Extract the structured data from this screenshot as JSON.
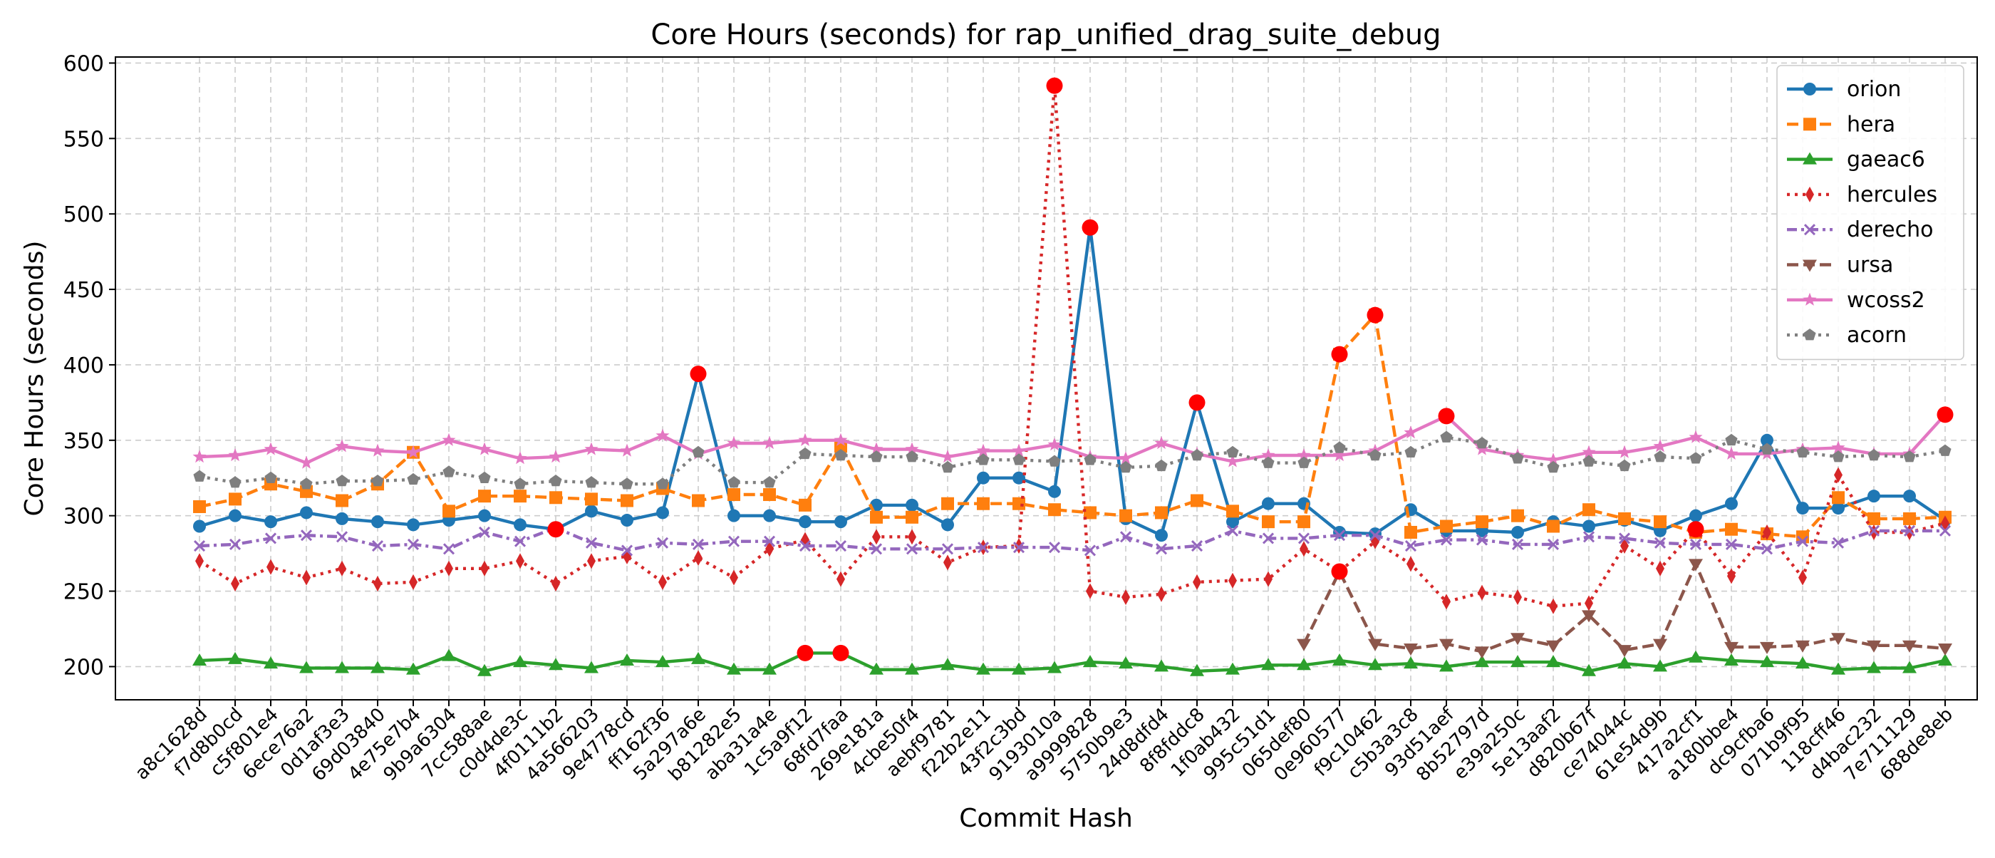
{
  "chart_data": {
    "type": "line",
    "title": "Core Hours (seconds) for rap_unified_drag_suite_debug",
    "xlabel": "Commit Hash",
    "ylabel": "Core Hours (seconds)",
    "ylim": [
      178,
      604
    ],
    "yticks": [
      200,
      250,
      300,
      350,
      400,
      450,
      500,
      550,
      600
    ],
    "grid": true,
    "legend_position": "top-right",
    "outlier_marker_color": "#ff0000",
    "categories": [
      "a8c1628d",
      "f7d8b0cd",
      "c5f801e4",
      "6ece76a2",
      "0d1af3e3",
      "69d03840",
      "4e75e7b4",
      "9b9a6304",
      "7cc588ae",
      "c0d4de3c",
      "4f0111b2",
      "4a566203",
      "9e4778cd",
      "ff162f36",
      "5a297a6e",
      "b81282e5",
      "aba31a4e",
      "1c5a9f12",
      "68fd7faa",
      "269e181a",
      "4cbe50f4",
      "aebf9781",
      "f22b2e11",
      "43f2c3bd",
      "9193010a",
      "a9999828",
      "5750b9e3",
      "24d8dfd4",
      "8f8fddc8",
      "1f0ab432",
      "995c51d1",
      "065def80",
      "0e960577",
      "f9c10462",
      "c5b3a3c8",
      "93d51aef",
      "8b52797d",
      "e39a250c",
      "5e13aaf2",
      "d820b67f",
      "ce74044c",
      "61e54d9b",
      "417a2cf1",
      "a180bbe4",
      "dc9cfba6",
      "071b9f95",
      "118cff46",
      "d4bac232",
      "7e711129",
      "688de8eb"
    ],
    "series": [
      {
        "name": "orion",
        "color": "#1f77b4",
        "dash": "solid",
        "marker": "circle",
        "values": [
          293,
          300,
          296,
          302,
          298,
          296,
          294,
          297,
          300,
          294,
          291,
          303,
          297,
          302,
          394,
          300,
          300,
          296,
          296,
          307,
          307,
          294,
          325,
          325,
          316,
          491,
          298,
          287,
          375,
          296,
          308,
          308,
          289,
          288,
          304,
          290,
          290,
          289,
          296,
          293,
          297,
          290,
          300,
          308,
          350,
          305,
          305,
          313,
          313,
          297
        ],
        "highlights": [
          10,
          14,
          25,
          28
        ]
      },
      {
        "name": "hera",
        "color": "#ff7f0e",
        "dash": "dashed",
        "marker": "square",
        "values": [
          306,
          311,
          321,
          316,
          310,
          321,
          342,
          303,
          313,
          313,
          312,
          311,
          310,
          318,
          310,
          314,
          314,
          307,
          346,
          299,
          299,
          308,
          308,
          308,
          304,
          302,
          300,
          302,
          310,
          303,
          296,
          296,
          407,
          433,
          289,
          293,
          296,
          300,
          293,
          304,
          298,
          296,
          289,
          291,
          288,
          286,
          312,
          298,
          298,
          299
        ],
        "highlights": [
          32,
          33
        ]
      },
      {
        "name": "gaeac6",
        "color": "#2ca02c",
        "dash": "solid",
        "marker": "triangle-up",
        "values": [
          204,
          205,
          202,
          199,
          199,
          199,
          198,
          207,
          197,
          203,
          201,
          199,
          204,
          203,
          205,
          198,
          198,
          209,
          209,
          198,
          198,
          201,
          198,
          198,
          199,
          203,
          202,
          200,
          197,
          198,
          201,
          201,
          204,
          201,
          202,
          200,
          203,
          203,
          203,
          197,
          202,
          200,
          206,
          204,
          203,
          202,
          198,
          199,
          199,
          204
        ],
        "highlights": [
          17,
          18
        ]
      },
      {
        "name": "hercules",
        "color": "#d62728",
        "dash": "dotted",
        "marker": "thin-diamond",
        "values": [
          270,
          255,
          266,
          259,
          265,
          255,
          256,
          265,
          265,
          270,
          255,
          270,
          273,
          256,
          272,
          259,
          278,
          284,
          258,
          286,
          286,
          269,
          279,
          280,
          585,
          250,
          246,
          248,
          256,
          257,
          258,
          278,
          263,
          283,
          268,
          243,
          249,
          246,
          240,
          242,
          280,
          265,
          291,
          260,
          289,
          259,
          327,
          289,
          289,
          295
        ],
        "highlights": [
          24,
          32,
          42
        ]
      },
      {
        "name": "derecho",
        "color": "#9467bd",
        "dash": "dashdot",
        "marker": "x",
        "values": [
          280,
          281,
          285,
          287,
          286,
          280,
          281,
          278,
          289,
          283,
          292,
          282,
          277,
          282,
          281,
          283,
          283,
          280,
          280,
          278,
          278,
          278,
          279,
          279,
          279,
          277,
          286,
          278,
          280,
          290,
          285,
          285,
          287,
          287,
          280,
          284,
          284,
          281,
          281,
          286,
          285,
          282,
          281,
          281,
          278,
          283,
          282,
          290,
          290,
          290
        ],
        "highlights": []
      },
      {
        "name": "ursa",
        "color": "#8c564b",
        "dash": "dashed",
        "marker": "triangle-down",
        "values": [
          null,
          null,
          null,
          null,
          null,
          null,
          null,
          null,
          null,
          null,
          null,
          null,
          null,
          null,
          null,
          null,
          null,
          null,
          null,
          null,
          null,
          null,
          null,
          null,
          null,
          null,
          null,
          null,
          null,
          null,
          null,
          215,
          263,
          215,
          212,
          215,
          210,
          219,
          214,
          234,
          211,
          215,
          268,
          213,
          213,
          214,
          219,
          214,
          214,
          212
        ],
        "highlights": []
      },
      {
        "name": "wcoss2",
        "color": "#e377c2",
        "dash": "solid",
        "marker": "star",
        "values": [
          339,
          340,
          344,
          335,
          346,
          343,
          342,
          350,
          344,
          338,
          339,
          344,
          343,
          353,
          341,
          348,
          348,
          350,
          350,
          344,
          344,
          339,
          343,
          343,
          347,
          339,
          338,
          348,
          341,
          336,
          340,
          340,
          340,
          343,
          355,
          366,
          344,
          340,
          337,
          342,
          342,
          346,
          352,
          341,
          341,
          344,
          345,
          341,
          341,
          367
        ],
        "highlights": [
          35,
          49
        ]
      },
      {
        "name": "acorn",
        "color": "#7f7f7f",
        "dash": "dotted",
        "marker": "pentagon",
        "values": [
          326,
          322,
          325,
          321,
          323,
          323,
          324,
          329,
          325,
          321,
          323,
          322,
          321,
          321,
          342,
          322,
          322,
          341,
          340,
          339,
          339,
          332,
          337,
          337,
          336,
          337,
          332,
          333,
          340,
          342,
          335,
          335,
          345,
          340,
          342,
          352,
          348,
          338,
          332,
          336,
          333,
          339,
          338,
          350,
          344,
          342,
          339,
          340,
          339,
          343
        ],
        "highlights": []
      }
    ]
  }
}
